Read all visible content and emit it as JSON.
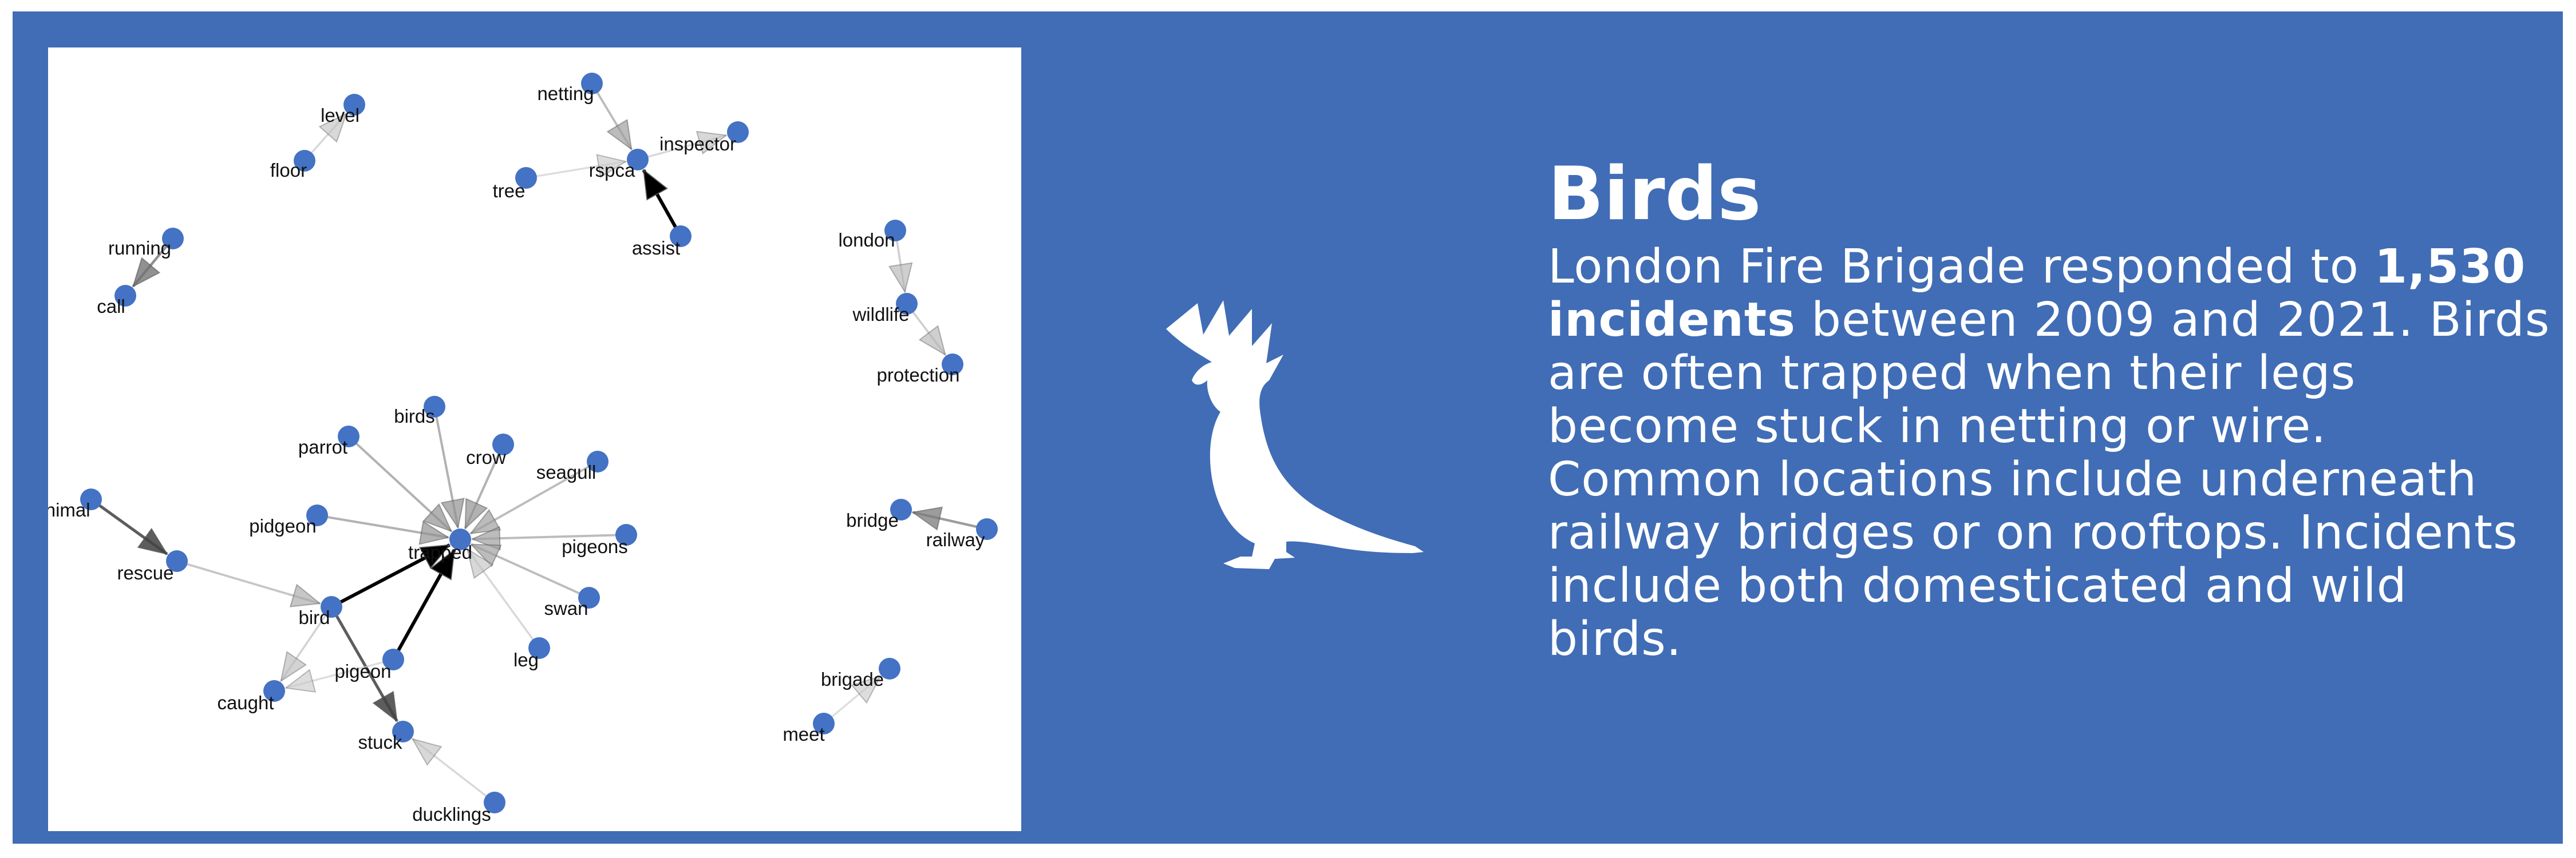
{
  "title": "Birds",
  "description": {
    "before": "London Fire Brigade responded to ",
    "highlight": "1,530 incidents",
    "after": " between 2009 and 2021. Birds are often trapped when their legs become stuck in netting or wire. Common locations include underneath railway bridges or on rooftops. Incidents include both domesticated and wild birds."
  },
  "colors": {
    "frame": "#ffffff",
    "banner": "#406db5",
    "node": "#4472c4",
    "text": "#ffffff"
  },
  "icon": "cockatoo-silhouette-icon",
  "graph": {
    "nodes": [
      {
        "id": "level",
        "label": "level"
      },
      {
        "id": "floor",
        "label": "floor"
      },
      {
        "id": "netting",
        "label": "netting"
      },
      {
        "id": "inspector",
        "label": "inspector"
      },
      {
        "id": "rspca",
        "label": "rspca"
      },
      {
        "id": "tree",
        "label": "tree"
      },
      {
        "id": "assist",
        "label": "assist"
      },
      {
        "id": "running",
        "label": "running"
      },
      {
        "id": "call",
        "label": "call"
      },
      {
        "id": "london",
        "label": "london"
      },
      {
        "id": "wildlife",
        "label": "wildlife"
      },
      {
        "id": "protection",
        "label": "protection"
      },
      {
        "id": "birds",
        "label": "birds"
      },
      {
        "id": "parrot",
        "label": "parrot"
      },
      {
        "id": "crow",
        "label": "crow"
      },
      {
        "id": "seagull",
        "label": "seagull"
      },
      {
        "id": "pidgeon",
        "label": "pidgeon"
      },
      {
        "id": "trapped",
        "label": "trapped"
      },
      {
        "id": "pigeons",
        "label": "pigeons"
      },
      {
        "id": "animal",
        "label": "animal"
      },
      {
        "id": "rescue",
        "label": "rescue"
      },
      {
        "id": "swan",
        "label": "swan"
      },
      {
        "id": "bird",
        "label": "bird"
      },
      {
        "id": "leg",
        "label": "leg"
      },
      {
        "id": "pigeon",
        "label": "pigeon"
      },
      {
        "id": "caught",
        "label": "caught"
      },
      {
        "id": "stuck",
        "label": "stuck"
      },
      {
        "id": "ducklings",
        "label": "ducklings"
      },
      {
        "id": "bridge",
        "label": "bridge"
      },
      {
        "id": "railway",
        "label": "railway"
      },
      {
        "id": "brigade",
        "label": "brigade"
      },
      {
        "id": "meet",
        "label": "meet"
      }
    ],
    "edges": [
      {
        "from": "floor",
        "to": "level",
        "weight": 0.15
      },
      {
        "from": "netting",
        "to": "rspca",
        "weight": 0.3
      },
      {
        "from": "rspca",
        "to": "inspector",
        "weight": 0.15
      },
      {
        "from": "tree",
        "to": "rspca",
        "weight": 0.12
      },
      {
        "from": "assist",
        "to": "rspca",
        "weight": 1.0
      },
      {
        "from": "running",
        "to": "call",
        "weight": 0.5
      },
      {
        "from": "london",
        "to": "wildlife",
        "weight": 0.2
      },
      {
        "from": "wildlife",
        "to": "protection",
        "weight": 0.2
      },
      {
        "from": "birds",
        "to": "trapped",
        "weight": 0.35
      },
      {
        "from": "parrot",
        "to": "trapped",
        "weight": 0.35
      },
      {
        "from": "crow",
        "to": "trapped",
        "weight": 0.35
      },
      {
        "from": "seagull",
        "to": "trapped",
        "weight": 0.3
      },
      {
        "from": "pidgeon",
        "to": "trapped",
        "weight": 0.35
      },
      {
        "from": "pigeons",
        "to": "trapped",
        "weight": 0.3
      },
      {
        "from": "swan",
        "to": "trapped",
        "weight": 0.3
      },
      {
        "from": "leg",
        "to": "trapped",
        "weight": 0.15
      },
      {
        "from": "pigeon",
        "to": "trapped",
        "weight": 1.0
      },
      {
        "from": "bird",
        "to": "trapped",
        "weight": 1.0
      },
      {
        "from": "animal",
        "to": "rescue",
        "weight": 0.7
      },
      {
        "from": "rescue",
        "to": "bird",
        "weight": 0.25
      },
      {
        "from": "bird",
        "to": "caught",
        "weight": 0.18
      },
      {
        "from": "bird",
        "to": "stuck",
        "weight": 0.7
      },
      {
        "from": "pigeon",
        "to": "caught",
        "weight": 0.12
      },
      {
        "from": "ducklings",
        "to": "stuck",
        "weight": 0.15
      },
      {
        "from": "railway",
        "to": "bridge",
        "weight": 0.45
      },
      {
        "from": "meet",
        "to": "brigade",
        "weight": 0.12
      }
    ]
  }
}
